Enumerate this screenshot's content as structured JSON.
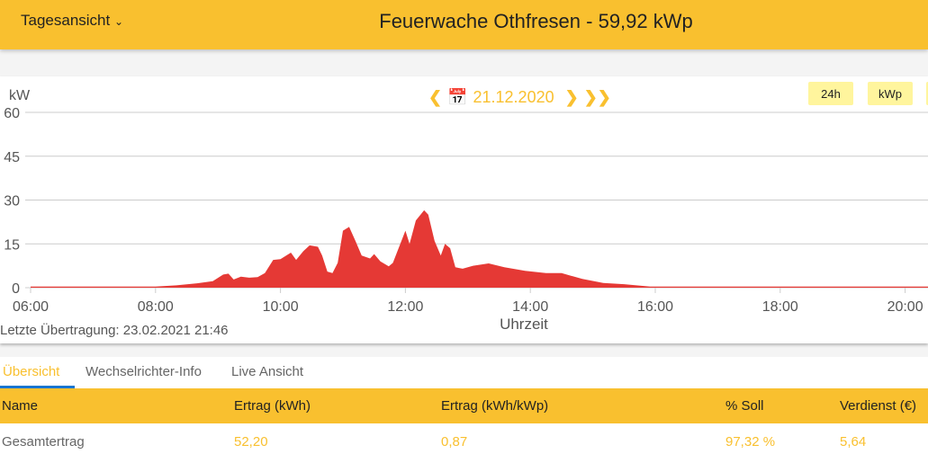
{
  "header": {
    "view_label": "Tagesansicht",
    "title": "Feuerwache Othfresen - 59,92 kWp"
  },
  "chart_nav": {
    "date": "21.12.2020",
    "btn_24h": "24h",
    "btn_kwp": "kWp"
  },
  "last_transfer": "Letzte Übertragung: 23.02.2021 21:46",
  "tabs": [
    "Übersicht",
    "Wechselrichter-Info",
    "Live Ansicht"
  ],
  "table": {
    "headers": [
      "Name",
      "Ertrag (kWh)",
      "Ertrag (kWh/kWp)",
      "% Soll",
      "Verdienst (€)"
    ],
    "rows": [
      [
        "Gesamtertrag",
        "52,20",
        "0,87",
        "97,32 %",
        "5,64"
      ]
    ]
  },
  "colors": {
    "accent": "#f9c02f",
    "series": "#e53935"
  },
  "chart_data": {
    "type": "area",
    "ylabel": "kW",
    "xlabel": "Uhrzeit",
    "ylim": [
      0,
      60
    ],
    "yticks": [
      "0",
      "15",
      "30",
      "45",
      "60"
    ],
    "xticks": [
      "06:00",
      "08:00",
      "10:00",
      "12:00",
      "14:00",
      "16:00",
      "18:00",
      "20:00"
    ],
    "grid": true,
    "series": [
      {
        "x": [
          "06:00",
          "08:00",
          "08:20",
          "08:40",
          "08:55",
          "09:05",
          "09:10",
          "09:15",
          "09:22",
          "09:30",
          "09:38",
          "09:45",
          "09:53",
          "10:00",
          "10:10",
          "10:15",
          "10:22",
          "10:28",
          "10:36",
          "10:40",
          "10:45",
          "10:50",
          "10:55",
          "11:00",
          "11:06",
          "11:12",
          "11:18",
          "11:26",
          "11:30",
          "11:36",
          "11:44",
          "11:48",
          "12:00",
          "12:04",
          "12:10",
          "12:18",
          "12:22",
          "12:28",
          "12:34",
          "12:38",
          "12:43",
          "12:48",
          "12:55",
          "13:05",
          "13:20",
          "13:35",
          "13:55",
          "14:15",
          "14:30",
          "14:50",
          "15:10",
          "15:30",
          "15:55",
          "20:40"
        ],
        "y": [
          0.4,
          0.4,
          0.8,
          1.5,
          2.2,
          4.5,
          4.8,
          2.8,
          3.8,
          3.4,
          3.6,
          5,
          9.5,
          9.8,
          12,
          9.5,
          12.5,
          14.5,
          14,
          11,
          5.5,
          5,
          8.5,
          19.5,
          20.8,
          16,
          11,
          10,
          11.5,
          9,
          7.3,
          8.5,
          19.5,
          15,
          23,
          26.5,
          25,
          16,
          11,
          15,
          13.5,
          7,
          6.5,
          7.5,
          8.3,
          7,
          5.8,
          5,
          5,
          3,
          1.6,
          1.2,
          0.4,
          0.4
        ]
      }
    ]
  }
}
